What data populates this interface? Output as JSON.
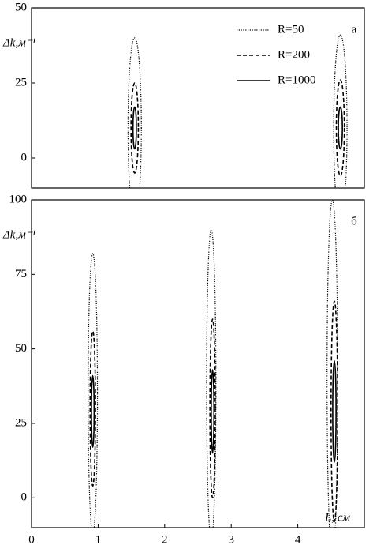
{
  "chart_data": [
    {
      "type": "ellipse",
      "panel_label": "а",
      "y_label": "Δk,м⁻¹",
      "xlim": [
        0,
        5
      ],
      "ylim": [
        -10,
        50
      ],
      "yticks": [
        0,
        25,
        50
      ],
      "legend": "upper right",
      "series": [
        {
          "name": "R=50",
          "color": "#000000",
          "style": "dotted",
          "x": [
            1.55,
            4.64
          ],
          "dx": [
            0.1,
            0.1
          ],
          "y": [
            10,
            10
          ],
          "dy": [
            30,
            31
          ]
        },
        {
          "name": "R=200",
          "color": "#000000",
          "style": "dashed",
          "x": [
            1.55,
            4.64
          ],
          "dx": [
            0.055,
            0.06
          ],
          "y": [
            10,
            10
          ],
          "dy": [
            15,
            16
          ]
        },
        {
          "name": "R=1000",
          "color": "#000000",
          "style": "solid",
          "x": [
            1.55,
            4.64
          ],
          "dx": [
            0.025,
            0.03
          ],
          "y": [
            10,
            10
          ],
          "dy": [
            7,
            7
          ]
        }
      ]
    },
    {
      "type": "ellipse",
      "panel_label": "б",
      "y_label": "Δk,м⁻¹",
      "x_label": "L, см",
      "xlim": [
        0,
        5
      ],
      "ylim": [
        -10,
        100
      ],
      "xticks": [
        0,
        1,
        2,
        3,
        4
      ],
      "yticks": [
        0,
        25,
        50,
        75,
        100
      ],
      "series": [
        {
          "name": "R=50",
          "color": "#000000",
          "style": "dotted",
          "x": [
            0.92,
            2.7,
            4.52
          ],
          "dx": [
            0.07,
            0.07,
            0.08
          ],
          "y": [
            35,
            38,
            40
          ],
          "dy": [
            47,
            52,
            60
          ]
        },
        {
          "name": "R=200",
          "color": "#000000",
          "style": "dashed",
          "x": [
            0.92,
            2.72,
            4.55
          ],
          "dx": [
            0.04,
            0.04,
            0.05
          ],
          "y": [
            30,
            30,
            29
          ],
          "dy": [
            26,
            30,
            37
          ]
        },
        {
          "name": "R=1000",
          "color": "#000000",
          "style": "solid",
          "x": [
            0.92,
            2.72,
            4.55
          ],
          "dx": [
            0.02,
            0.02,
            0.025
          ],
          "y": [
            29,
            29,
            29
          ],
          "dy": [
            12,
            14,
            17
          ]
        }
      ]
    }
  ]
}
